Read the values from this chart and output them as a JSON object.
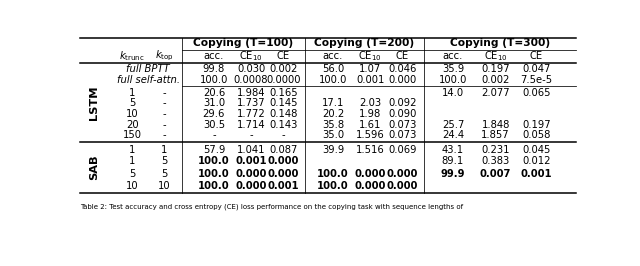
{
  "caption": "Table 2: Test accuracy and cross entropy (CE) loss performance on the copying task with sequence lengths of",
  "background_color": "#ffffff",
  "font_size": 7.2,
  "group_headers": [
    "Copying (T=100)",
    "Copying (T=200)",
    "Copying (T=300)"
  ],
  "col_headers_sub": [
    "acc.",
    "CE$_{10}$",
    "CE"
  ],
  "lstm_label": "LSTM",
  "sab_label": "SAB",
  "k_trunc_label": "$k_{\\mathrm{trunc}}$",
  "k_top_label": "$k_{\\mathrm{top}}$",
  "lstm_italic_rows": [
    {
      "label": "full BPTT",
      "vals": [
        "99.8",
        "0.030",
        "0.002",
        "56.0",
        "1.07",
        "0.046",
        "35.9",
        "0.197",
        "0.047"
      ],
      "bold": [
        false,
        false,
        false,
        false,
        false,
        false,
        false,
        false,
        false
      ]
    },
    {
      "label": "full self-attn.",
      "vals": [
        "100.0",
        "0.0008",
        "0.0000",
        "100.0",
        "0.001",
        "0.000",
        "100.0",
        "0.002",
        "7.5e-5"
      ],
      "bold": [
        false,
        false,
        false,
        false,
        false,
        false,
        false,
        false,
        false
      ]
    }
  ],
  "lstm_rows": [
    {
      "kt": "1",
      "ktp": "-",
      "vals": [
        "20.6",
        "1.984",
        "0.165",
        "",
        "",
        "",
        "14.0",
        "2.077",
        "0.065"
      ],
      "bold": [
        false,
        false,
        false,
        false,
        false,
        false,
        false,
        false,
        false
      ]
    },
    {
      "kt": "5",
      "ktp": "-",
      "vals": [
        "31.0",
        "1.737",
        "0.145",
        "17.1",
        "2.03",
        "0.092",
        "",
        "",
        ""
      ],
      "bold": [
        false,
        false,
        false,
        false,
        false,
        false,
        false,
        false,
        false
      ]
    },
    {
      "kt": "10",
      "ktp": "-",
      "vals": [
        "29.6",
        "1.772",
        "0.148",
        "20.2",
        "1.98",
        "0.090",
        "",
        "",
        ""
      ],
      "bold": [
        false,
        false,
        false,
        false,
        false,
        false,
        false,
        false,
        false
      ]
    },
    {
      "kt": "20",
      "ktp": "-",
      "vals": [
        "30.5",
        "1.714",
        "0.143",
        "35.8",
        "1.61",
        "0.073",
        "25.7",
        "1.848",
        "0.197"
      ],
      "bold": [
        false,
        false,
        false,
        false,
        false,
        false,
        false,
        false,
        false
      ]
    },
    {
      "kt": "150",
      "ktp": "-",
      "vals": [
        "-",
        "-",
        "-",
        "35.0",
        "1.596",
        "0.073",
        "24.4",
        "1.857",
        "0.058"
      ],
      "bold": [
        false,
        false,
        false,
        false,
        false,
        false,
        false,
        false,
        false
      ]
    }
  ],
  "sab_rows": [
    {
      "kt": "1",
      "ktp": "1",
      "vals": [
        "57.9",
        "1.041",
        "0.087",
        "39.9",
        "1.516",
        "0.069",
        "43.1",
        "0.231",
        "0.045"
      ],
      "bold": [
        false,
        false,
        false,
        false,
        false,
        false,
        false,
        false,
        false
      ]
    },
    {
      "kt": "1",
      "ktp": "5",
      "vals": [
        "100.0",
        "0.001",
        "0.000",
        "",
        "",
        "",
        "89.1",
        "0.383",
        "0.012"
      ],
      "bold": [
        true,
        true,
        true,
        false,
        false,
        false,
        false,
        false,
        false
      ]
    },
    {
      "kt": "5",
      "ktp": "5",
      "vals": [
        "100.0",
        "0.000",
        "0.000",
        "100.0",
        "0.000",
        "0.000",
        "99.9",
        "0.007",
        "0.001"
      ],
      "bold": [
        true,
        true,
        true,
        true,
        true,
        true,
        true,
        true,
        true
      ]
    },
    {
      "kt": "10",
      "ktp": "10",
      "vals": [
        "100.0",
        "0.000",
        "0.001",
        "100.0",
        "0.000",
        "0.000",
        "",
        "",
        ""
      ],
      "bold": [
        true,
        true,
        true,
        true,
        true,
        true,
        false,
        false,
        false
      ]
    }
  ]
}
